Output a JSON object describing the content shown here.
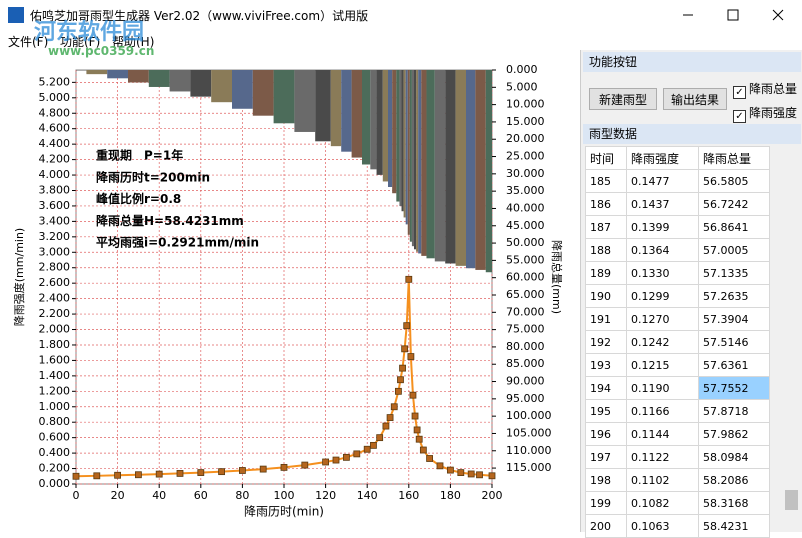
{
  "window": {
    "title": "佑鸣芝加哥雨型生成器 Ver2.02（www.viviFree.com）试用版"
  },
  "menu": [
    "文件(F)",
    "功能(F)",
    "帮助(H)"
  ],
  "watermark": {
    "name": "河东软件园",
    "url": "www.pc0359.cn"
  },
  "panel": {
    "buttons_title": "功能按钮",
    "buttons": [
      "新建雨型",
      "输出结果"
    ],
    "checkboxes": [
      "降雨总量",
      "降雨强度"
    ],
    "data_title": "雨型数据"
  },
  "table": {
    "header": [
      "时间",
      "降雨强度",
      "降雨总量"
    ],
    "rows": [
      [
        "185",
        "0.1477",
        "56.5805"
      ],
      [
        "186",
        "0.1437",
        "56.7242"
      ],
      [
        "187",
        "0.1399",
        "56.8641"
      ],
      [
        "188",
        "0.1364",
        "57.0005"
      ],
      [
        "189",
        "0.1330",
        "57.1335"
      ],
      [
        "190",
        "0.1299",
        "57.2635"
      ],
      [
        "191",
        "0.1270",
        "57.3904"
      ],
      [
        "192",
        "0.1242",
        "57.5146"
      ],
      [
        "193",
        "0.1215",
        "57.6361"
      ],
      [
        "194",
        "0.1190",
        "57.7552"
      ],
      [
        "195",
        "0.1166",
        "57.8718"
      ],
      [
        "196",
        "0.1144",
        "57.9862"
      ],
      [
        "197",
        "0.1122",
        "58.0984"
      ],
      [
        "198",
        "0.1102",
        "58.2086"
      ],
      [
        "199",
        "0.1082",
        "58.3168"
      ],
      [
        "200",
        "0.1063",
        "58.4231"
      ]
    ]
  },
  "chart_data": {
    "type": "bar_line",
    "xlabel": "降雨历时(min)",
    "ylabel": "降雨强度(mm/min)",
    "y2label": "降雨总量(mm)",
    "annotations": [
      "重现期　P=1年",
      "降雨历时t=200min",
      "峰值比例r=0.8",
      "降雨总量H=58.4231mm",
      "平均雨强i=0.2921mm/min"
    ],
    "grid": true,
    "y2_inverted": true,
    "x": [
      0,
      10,
      20,
      30,
      40,
      50,
      60,
      70,
      80,
      90,
      100,
      110,
      120,
      125,
      130,
      135,
      140,
      143,
      146,
      149,
      151,
      153,
      155,
      156,
      157,
      158,
      159,
      160,
      161,
      162,
      163,
      164,
      165,
      167,
      170,
      175,
      180,
      185,
      190,
      194,
      200
    ],
    "series": [
      {
        "type": "bar",
        "axis": "y2",
        "colors": [
          "#4a4a4a",
          "#8a7b58",
          "#56688c",
          "#7c5a48",
          "#4c6c5a",
          "#6a6a6a"
        ],
        "values": [
          0.1,
          1.2,
          2.4,
          3.6,
          4.9,
          6.2,
          7.7,
          9.3,
          11.2,
          13.2,
          15.4,
          17.9,
          20.6,
          22.0,
          23.6,
          25.3,
          27.3,
          28.7,
          30.3,
          32.2,
          33.8,
          35.6,
          38.0,
          39.3,
          40.8,
          42.6,
          44.6,
          47.6,
          49.6,
          50.9,
          51.8,
          52.5,
          53.0,
          53.7,
          54.4,
          55.3,
          55.9,
          56.5805,
          57.2635,
          57.7552,
          58.4231
        ]
      },
      {
        "type": "line",
        "axis": "y",
        "color": "#f5901e",
        "marker_fill": "#b5651d",
        "marker_stroke": "#5a3a10",
        "values": [
          0.1,
          0.106,
          0.113,
          0.12,
          0.128,
          0.137,
          0.148,
          0.16,
          0.175,
          0.193,
          0.215,
          0.245,
          0.285,
          0.31,
          0.345,
          0.39,
          0.45,
          0.5,
          0.6,
          0.75,
          0.86,
          1.0,
          1.2,
          1.35,
          1.5,
          1.75,
          2.05,
          2.65,
          1.65,
          1.15,
          0.88,
          0.7,
          0.58,
          0.44,
          0.33,
          0.235,
          0.18,
          0.1477,
          0.1299,
          0.119,
          0.1063
        ]
      }
    ],
    "xlim": [
      0,
      200
    ],
    "xticks": [
      0,
      20,
      40,
      60,
      80,
      100,
      120,
      140,
      160,
      180,
      200
    ],
    "ylim": [
      0,
      5.36
    ],
    "yticks": [
      {
        "value": 0,
        "label": "0.000"
      },
      {
        "value": 0.2,
        "label": "0.200"
      },
      {
        "value": 0.4,
        "label": "0.400"
      },
      {
        "value": 0.6,
        "label": "0.600"
      },
      {
        "value": 0.8,
        "label": "0.800"
      },
      {
        "value": 1,
        "label": "1.000"
      },
      {
        "value": 1.2,
        "label": "1.200"
      },
      {
        "value": 1.4,
        "label": "1.400"
      },
      {
        "value": 1.6,
        "label": "1.600"
      },
      {
        "value": 1.8,
        "label": "1.800"
      },
      {
        "value": 2,
        "label": "2.000"
      },
      {
        "value": 2.2,
        "label": "2.200"
      },
      {
        "value": 2.4,
        "label": "2.400"
      },
      {
        "value": 2.6,
        "label": "2.600"
      },
      {
        "value": 2.8,
        "label": "2.800"
      },
      {
        "value": 3,
        "label": "3.000"
      },
      {
        "value": 3.2,
        "label": "3.200"
      },
      {
        "value": 3.4,
        "label": "3.400"
      },
      {
        "value": 3.6,
        "label": "3.600"
      },
      {
        "value": 3.8,
        "label": "3.800"
      },
      {
        "value": 4,
        "label": "4.000"
      },
      {
        "value": 4.2,
        "label": "4.200"
      },
      {
        "value": 4.4,
        "label": "4.400"
      },
      {
        "value": 4.6,
        "label": "4.600"
      },
      {
        "value": 4.8,
        "label": "4.800"
      },
      {
        "value": 5,
        "label": "5.000"
      },
      {
        "value": 5.2,
        "label": "5.200"
      }
    ],
    "y2lim": [
      0,
      119.6
    ],
    "y2ticks": [
      {
        "value": 0,
        "label": "0.000"
      },
      {
        "value": 5,
        "label": "5.000"
      },
      {
        "value": 10,
        "label": "10.000"
      },
      {
        "value": 15,
        "label": "15.000"
      },
      {
        "value": 20,
        "label": "20.000"
      },
      {
        "value": 25,
        "label": "25.000"
      },
      {
        "value": 30,
        "label": "30.000"
      },
      {
        "value": 35,
        "label": "35.000"
      },
      {
        "value": 40,
        "label": "40.000"
      },
      {
        "value": 45,
        "label": "45.000"
      },
      {
        "value": 50,
        "label": "50.000"
      },
      {
        "value": 55,
        "label": "55.000"
      },
      {
        "value": 60,
        "label": "60.000"
      },
      {
        "value": 65,
        "label": "65.000"
      },
      {
        "value": 70,
        "label": "70.000"
      },
      {
        "value": 75,
        "label": "75.000"
      },
      {
        "value": 80,
        "label": "80.000"
      },
      {
        "value": 85,
        "label": "85.000"
      },
      {
        "value": 90,
        "label": "90.000"
      },
      {
        "value": 95,
        "label": "95.000"
      },
      {
        "value": 100,
        "label": "100.000"
      },
      {
        "value": 105,
        "label": "105.000"
      },
      {
        "value": 110,
        "label": "110.000"
      },
      {
        "value": 115,
        "label": "115.000"
      }
    ]
  }
}
